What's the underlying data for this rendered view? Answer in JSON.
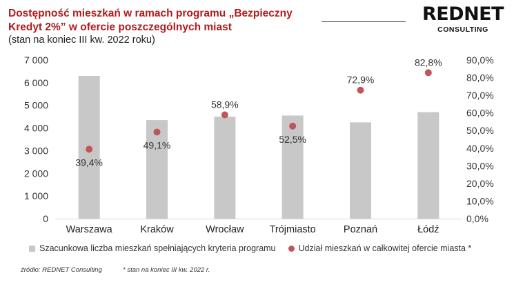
{
  "header": {
    "title": "Dostępność mieszkań w ramach programu „Bezpieczny Kredyt 2%” w ofercie poszczególnych miast",
    "subtitle": "(stan na koniec III kw. 2022 roku)",
    "logo_main": "REDNET",
    "logo_sub": "CONSULTING"
  },
  "footer": {
    "source": "źródło: REDNET Consulting",
    "note": "* stan na koniec III kw. 2022 r."
  },
  "colors": {
    "title": "#b01c1c",
    "bar": "#c8c8c8",
    "dot": "#c0565a"
  },
  "chart_data": {
    "type": "bar",
    "categories": [
      "Warszawa",
      "Kraków",
      "Wrocław",
      "Trójmiasto",
      "Poznań",
      "Łódź"
    ],
    "series": [
      {
        "name": "Szacunkowa liczba mieszkań spełniających kryteria programu",
        "type": "bar",
        "axis": "left",
        "values": [
          6300,
          4350,
          4500,
          4550,
          4250,
          4700
        ]
      },
      {
        "name": "Udział mieszkań w całkowitej ofercie miasta *",
        "type": "scatter",
        "axis": "right",
        "values": [
          39.4,
          49.1,
          58.9,
          52.5,
          72.9,
          82.8
        ],
        "labels": [
          "39,4%",
          "49,1%",
          "58,9%",
          "52,5%",
          "72,9%",
          "82,8%"
        ]
      }
    ],
    "y_left": {
      "ylim": [
        0,
        7000
      ],
      "ticks": [
        "0",
        "1 000",
        "2 000",
        "3 000",
        "4 000",
        "5 000",
        "6 000",
        "7 000"
      ]
    },
    "y_right": {
      "ylim": [
        0,
        90
      ],
      "ticks": [
        "0,0%",
        "10,0%",
        "20,0%",
        "30,0%",
        "40,0%",
        "50,0%",
        "60,0%",
        "70,0%",
        "80,0%",
        "90,0%"
      ]
    },
    "grid": false,
    "legend_position": "bottom"
  }
}
